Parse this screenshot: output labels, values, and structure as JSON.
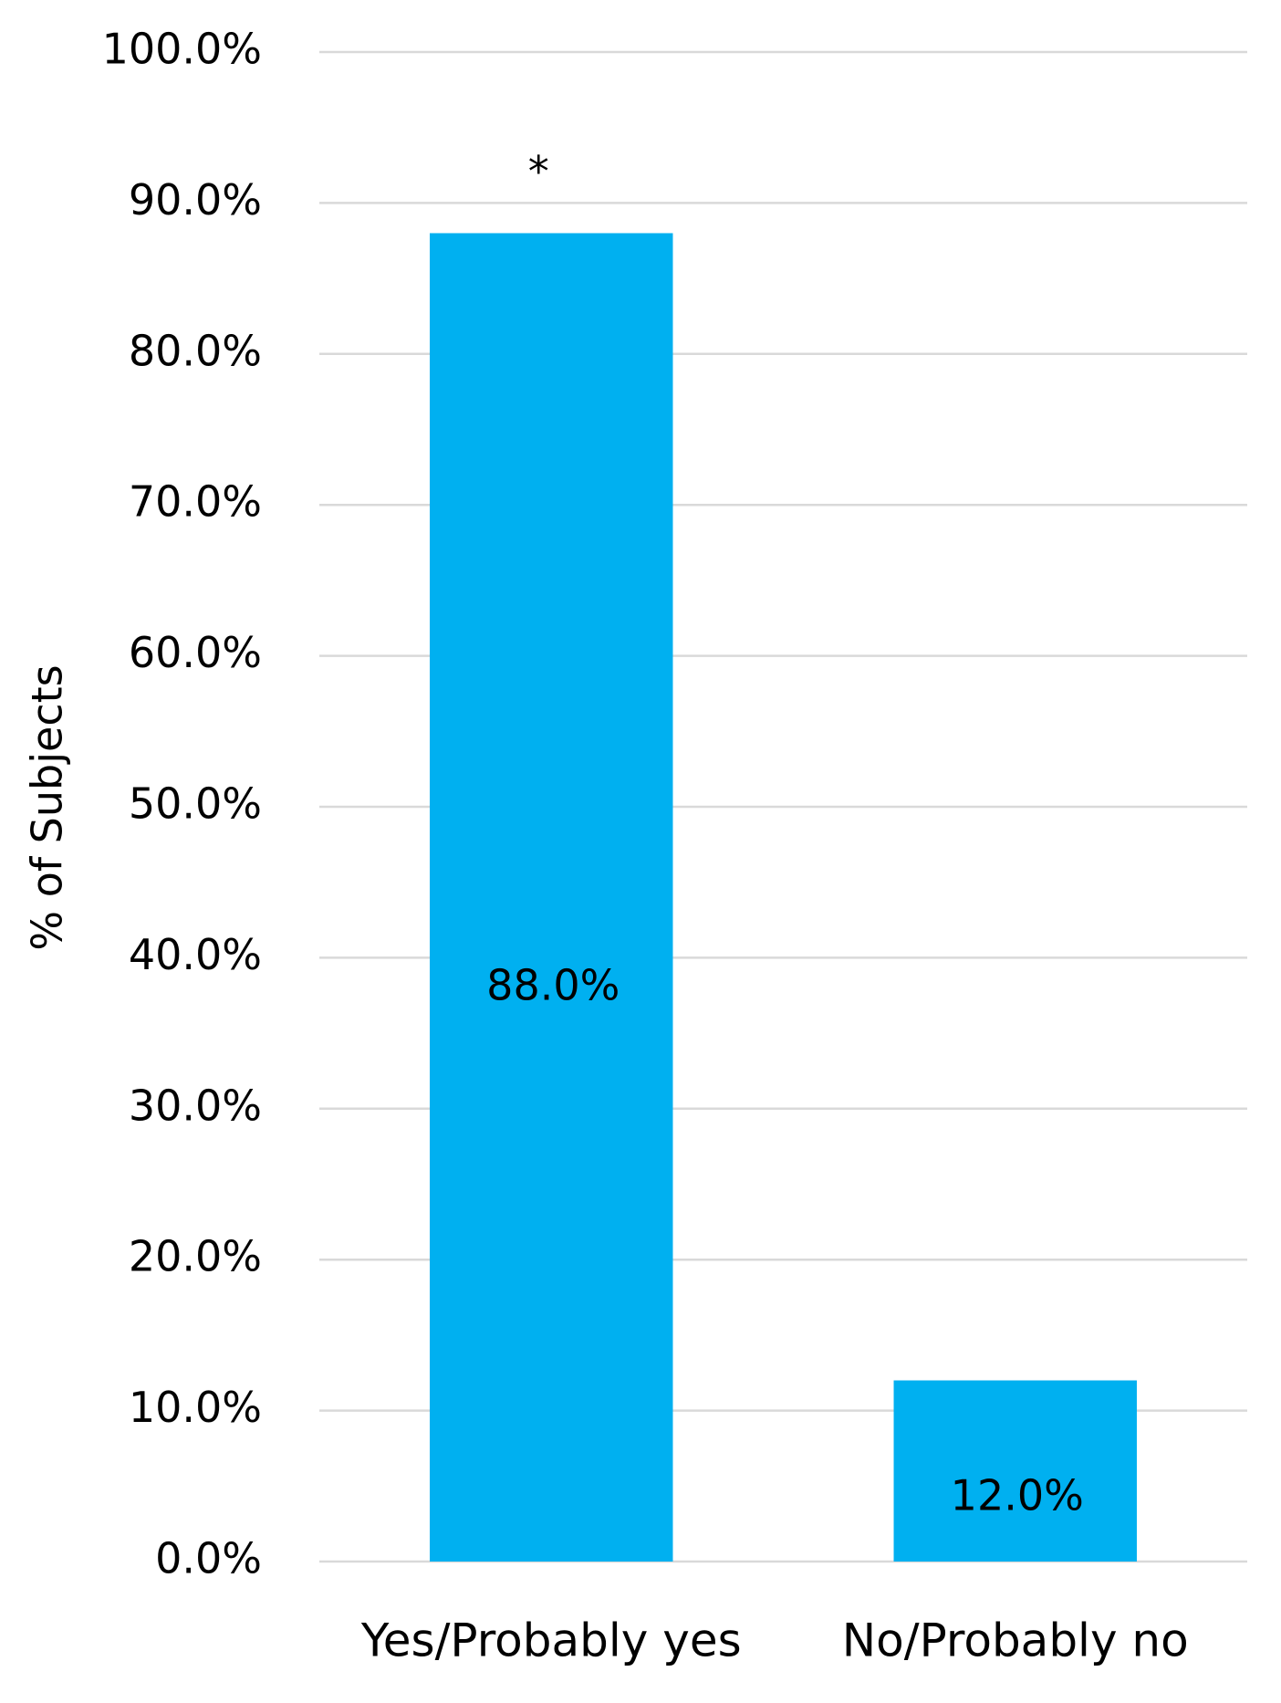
{
  "chart_data": {
    "type": "bar",
    "y_label": "% of Subjects",
    "categories": [
      "Yes/Probably yes",
      "No/Probably no"
    ],
    "values": [
      88,
      12
    ],
    "value_labels": [
      "88.0%",
      "12.0%"
    ],
    "annotations": [
      {
        "category": "Yes/Probably yes",
        "text": "*"
      }
    ],
    "color": "#00b0f0",
    "ylim": [
      0,
      100
    ],
    "yticks": [
      {
        "value": 0,
        "label": "0.0%"
      },
      {
        "value": 10,
        "label": "10.0%"
      },
      {
        "value": 20,
        "label": "20.0%"
      },
      {
        "value": 30,
        "label": "30.0%"
      },
      {
        "value": 40,
        "label": "40.0%"
      },
      {
        "value": 50,
        "label": "50.0%"
      },
      {
        "value": 60,
        "label": "60.0%"
      },
      {
        "value": 70,
        "label": "70.0%"
      },
      {
        "value": 80,
        "label": "80.0%"
      },
      {
        "value": 90,
        "label": "90.0%"
      },
      {
        "value": 100,
        "label": "100.0%"
      }
    ],
    "grid": true
  }
}
